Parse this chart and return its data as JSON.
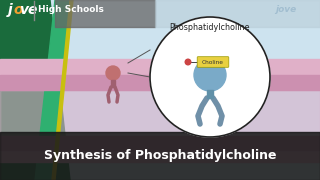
{
  "bg_light_blue": "#cde3ef",
  "header_green_dark": "#1a6b3c",
  "header_green_mid": "#2fb070",
  "header_yellow": "#c8c010",
  "high_schools_text": "High Schools",
  "title_text": "Synthesis of Phosphatidylcholine",
  "title_bg_color": "#1a1a1a",
  "title_text_color": "#ffffff",
  "phosphatidylcholine_label": "Phosphatidylcholine",
  "choline_label": "Choline",
  "circle_bg": "#ffffff",
  "circle_border": "#222222",
  "molecule_head_color": "#7aaac8",
  "molecule_neck_color": "#6090a8",
  "molecule_tail_color": "#7090a8",
  "small_mol_head_color": "#c07070",
  "small_mol_tail_color": "#a06070",
  "choline_bg": "#e8d040",
  "choline_dot_color": "#cc4444",
  "membrane_top_color": "#dda8c0",
  "membrane_bottom_color": "#d090b0",
  "membrane_mid_color": "#c880a0",
  "jove_logo_o_color": "#f0a030",
  "watermark_color": "#9ab8cc",
  "header_bg_left": "#555555",
  "header_bg_right": "#c8d8e0",
  "separator_color": "#888888"
}
